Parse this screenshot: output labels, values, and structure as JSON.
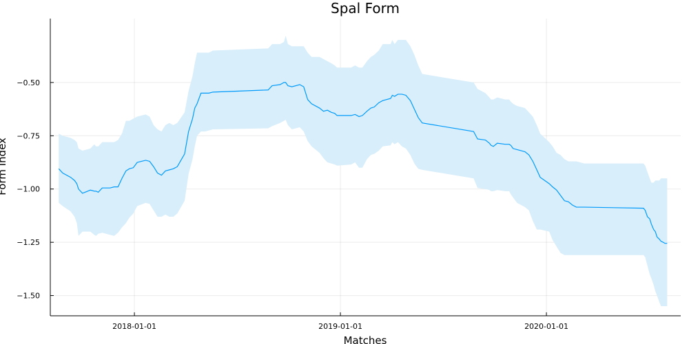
{
  "chart_data": {
    "type": "line",
    "title": "Spal Form",
    "xlabel": "Matches",
    "ylabel": "Form Index",
    "xlim": [
      "2017-08-05",
      "2020-08-26"
    ],
    "ylim": [
      -1.595,
      -0.2
    ],
    "x_ticks": [
      "2018-01-01",
      "2019-01-01",
      "2020-01-01"
    ],
    "y_ticks": [
      -0.5,
      -0.75,
      -1.0,
      -1.25,
      -1.5
    ],
    "y_tick_labels": [
      "−0.50",
      "−0.75",
      "−1.00",
      "−1.25",
      "−1.50"
    ],
    "grid": true,
    "legend": "none",
    "colors": {
      "line": "#009AFA",
      "band": "#D8EEFA"
    },
    "series": [
      {
        "x": [
          "2017-08-20",
          "2017-08-27",
          "2017-09-10",
          "2017-09-17",
          "2017-09-21",
          "2017-09-24",
          "2017-10-01",
          "2017-10-15",
          "2017-10-22",
          "2017-10-25",
          "2017-10-29",
          "2017-11-05",
          "2017-11-19",
          "2017-11-26",
          "2017-12-03",
          "2017-12-10",
          "2017-12-17",
          "2017-12-23",
          "2017-12-30",
          "2018-01-06",
          "2018-01-21",
          "2018-01-28",
          "2018-02-04",
          "2018-02-11",
          "2018-02-18",
          "2018-02-25",
          "2018-03-04",
          "2018-03-11",
          "2018-03-18",
          "2018-03-31",
          "2018-04-07",
          "2018-04-14",
          "2018-04-18",
          "2018-04-22",
          "2018-04-29",
          "2018-05-06",
          "2018-05-13",
          "2018-05-20",
          "2018-08-26",
          "2018-09-02",
          "2018-09-16",
          "2018-09-23",
          "2018-09-26",
          "2018-09-30",
          "2018-10-07",
          "2018-10-21",
          "2018-10-28",
          "2018-11-04",
          "2018-11-11",
          "2018-11-25",
          "2018-12-02",
          "2018-12-09",
          "2018-12-16",
          "2018-12-22",
          "2018-12-26",
          "2018-12-29",
          "2019-01-20",
          "2019-01-27",
          "2019-02-03",
          "2019-02-09",
          "2019-02-17",
          "2019-02-24",
          "2019-03-02",
          "2019-03-10",
          "2019-03-17",
          "2019-03-31",
          "2019-04-03",
          "2019-04-07",
          "2019-04-13",
          "2019-04-20",
          "2019-04-27",
          "2019-05-05",
          "2019-05-12",
          "2019-05-19",
          "2019-05-26",
          "2019-08-25",
          "2019-09-01",
          "2019-09-15",
          "2019-09-22",
          "2019-09-25",
          "2019-09-29",
          "2019-10-06",
          "2019-10-20",
          "2019-10-27",
          "2019-10-30",
          "2019-11-03",
          "2019-11-10",
          "2019-11-24",
          "2019-12-01",
          "2019-12-08",
          "2019-12-15",
          "2019-12-21",
          "2020-01-06",
          "2020-01-12",
          "2020-01-19",
          "2020-01-26",
          "2020-02-02",
          "2020-02-09",
          "2020-02-16",
          "2020-02-23",
          "2020-03-08",
          "2020-06-21",
          "2020-06-24",
          "2020-06-28",
          "2020-07-02",
          "2020-07-05",
          "2020-07-09",
          "2020-07-12",
          "2020-07-15",
          "2020-07-19",
          "2020-07-22",
          "2020-07-26",
          "2020-07-29",
          "2020-08-02"
        ],
        "values": [
          -0.905,
          -0.925,
          -0.945,
          -0.96,
          -0.975,
          -1.0,
          -1.02,
          -1.005,
          -1.01,
          -1.01,
          -1.015,
          -0.995,
          -0.995,
          -0.99,
          -0.99,
          -0.95,
          -0.915,
          -0.905,
          -0.9,
          -0.875,
          -0.865,
          -0.87,
          -0.895,
          -0.925,
          -0.935,
          -0.915,
          -0.91,
          -0.905,
          -0.895,
          -0.835,
          -0.73,
          -0.67,
          -0.62,
          -0.6,
          -0.55,
          -0.55,
          -0.55,
          -0.545,
          -0.535,
          -0.515,
          -0.51,
          -0.5,
          -0.5,
          -0.515,
          -0.52,
          -0.51,
          -0.52,
          -0.58,
          -0.6,
          -0.62,
          -0.635,
          -0.63,
          -0.64,
          -0.645,
          -0.655,
          -0.655,
          -0.655,
          -0.65,
          -0.66,
          -0.655,
          -0.635,
          -0.62,
          -0.615,
          -0.595,
          -0.585,
          -0.575,
          -0.56,
          -0.565,
          -0.555,
          -0.555,
          -0.56,
          -0.585,
          -0.625,
          -0.665,
          -0.69,
          -0.73,
          -0.765,
          -0.77,
          -0.785,
          -0.795,
          -0.8,
          -0.785,
          -0.79,
          -0.79,
          -0.795,
          -0.81,
          -0.815,
          -0.825,
          -0.84,
          -0.87,
          -0.91,
          -0.945,
          -0.975,
          -0.99,
          -1.005,
          -1.03,
          -1.055,
          -1.06,
          -1.075,
          -1.085,
          -1.085,
          -1.09,
          -1.1,
          -1.13,
          -1.14,
          -1.165,
          -1.19,
          -1.2,
          -1.225,
          -1.235,
          -1.245,
          -1.25,
          -1.255,
          -1.255
        ],
        "lower": [
          -1.065,
          -1.08,
          -1.105,
          -1.13,
          -1.16,
          -1.22,
          -1.2,
          -1.2,
          -1.215,
          -1.22,
          -1.21,
          -1.205,
          -1.215,
          -1.22,
          -1.205,
          -1.18,
          -1.16,
          -1.135,
          -1.115,
          -1.08,
          -1.065,
          -1.07,
          -1.1,
          -1.13,
          -1.13,
          -1.12,
          -1.13,
          -1.13,
          -1.115,
          -1.055,
          -0.93,
          -0.86,
          -0.8,
          -0.75,
          -0.73,
          -0.73,
          -0.725,
          -0.72,
          -0.715,
          -0.705,
          -0.69,
          -0.68,
          -0.675,
          -0.7,
          -0.72,
          -0.71,
          -0.73,
          -0.775,
          -0.8,
          -0.83,
          -0.855,
          -0.875,
          -0.88,
          -0.885,
          -0.89,
          -0.89,
          -0.885,
          -0.875,
          -0.9,
          -0.9,
          -0.86,
          -0.84,
          -0.835,
          -0.82,
          -0.8,
          -0.795,
          -0.78,
          -0.79,
          -0.78,
          -0.8,
          -0.81,
          -0.84,
          -0.88,
          -0.905,
          -0.91,
          -0.95,
          -0.995,
          -1.0,
          -1.005,
          -1.01,
          -1.01,
          -1.005,
          -1.01,
          -1.01,
          -1.025,
          -1.04,
          -1.065,
          -1.085,
          -1.1,
          -1.15,
          -1.19,
          -1.19,
          -1.2,
          -1.24,
          -1.27,
          -1.3,
          -1.31,
          -1.31,
          -1.31,
          -1.31,
          -1.31,
          -1.31,
          -1.32,
          -1.36,
          -1.4,
          -1.42,
          -1.45,
          -1.48,
          -1.5,
          -1.53,
          -1.55,
          -1.55,
          -1.55,
          -1.55
        ],
        "upper": [
          -0.74,
          -0.75,
          -0.76,
          -0.77,
          -0.78,
          -0.81,
          -0.82,
          -0.81,
          -0.79,
          -0.8,
          -0.8,
          -0.78,
          -0.78,
          -0.78,
          -0.77,
          -0.74,
          -0.68,
          -0.68,
          -0.67,
          -0.66,
          -0.65,
          -0.66,
          -0.7,
          -0.72,
          -0.73,
          -0.7,
          -0.69,
          -0.7,
          -0.69,
          -0.64,
          -0.54,
          -0.47,
          -0.41,
          -0.36,
          -0.36,
          -0.36,
          -0.36,
          -0.35,
          -0.34,
          -0.32,
          -0.32,
          -0.31,
          -0.28,
          -0.32,
          -0.33,
          -0.33,
          -0.33,
          -0.36,
          -0.38,
          -0.38,
          -0.39,
          -0.4,
          -0.41,
          -0.42,
          -0.43,
          -0.43,
          -0.43,
          -0.42,
          -0.43,
          -0.43,
          -0.4,
          -0.38,
          -0.37,
          -0.35,
          -0.32,
          -0.32,
          -0.3,
          -0.32,
          -0.3,
          -0.3,
          -0.3,
          -0.33,
          -0.37,
          -0.42,
          -0.46,
          -0.5,
          -0.53,
          -0.55,
          -0.57,
          -0.58,
          -0.58,
          -0.57,
          -0.58,
          -0.58,
          -0.59,
          -0.6,
          -0.61,
          -0.62,
          -0.64,
          -0.66,
          -0.7,
          -0.74,
          -0.78,
          -0.8,
          -0.83,
          -0.84,
          -0.86,
          -0.87,
          -0.87,
          -0.87,
          -0.88,
          -0.88,
          -0.89,
          -0.92,
          -0.95,
          -0.97,
          -0.97,
          -0.96,
          -0.96,
          -0.96,
          -0.95,
          -0.95,
          -0.95,
          -0.95
        ]
      }
    ]
  }
}
